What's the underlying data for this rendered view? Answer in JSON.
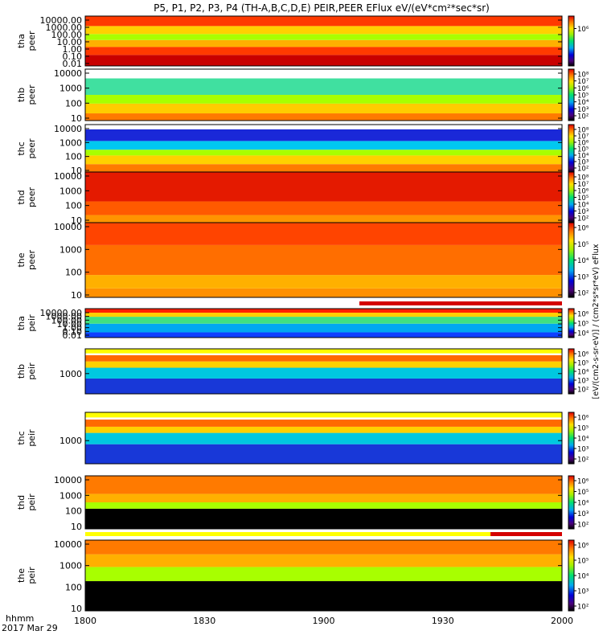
{
  "title": "P5, P1, P2, P3, P4 (TH-A,B,C,D,E) PEIR,PEER EFlux eV/(eV*cm²*sec*sr)",
  "x_axis": {
    "label": "hhmm",
    "date": "2017 Mar 29",
    "ticks": [
      "1800",
      "1830",
      "1900",
      "1930",
      "2000"
    ]
  },
  "colorbar_units_text": "[eV/(cm2-s-sr-eV)] / (cm2*s*sr*eV) eFlux",
  "colorbar_tick_text": [
    "10²",
    "10³",
    "10⁴",
    "10⁵",
    "10⁶",
    "10⁷",
    "10⁸"
  ],
  "chart_data": {
    "type": "heatmap",
    "title": "P5, P1, P2, P3, P4 (TH-A,B,C,D,E) PEIR,PEER EFlux eV/(eV*cm²*sec*sr)",
    "x_range": [
      "18:00",
      "20:00"
    ],
    "x_ticks": [
      "1800",
      "1830",
      "1900",
      "1930",
      "2000"
    ],
    "zscale": "log",
    "panels": [
      {
        "name": "tha peer",
        "label": [
          "tha",
          "peer"
        ],
        "yscale": "log",
        "yticks": [
          "0.01",
          "0.10",
          "1.00",
          "10.00",
          "100.00",
          "1000.00",
          "10000.00"
        ],
        "cbticks": [
          "10⁶"
        ]
      },
      {
        "name": "thb peer",
        "label": [
          "thb",
          "peer"
        ],
        "yscale": "log",
        "yticks": [
          "10",
          "100",
          "1000",
          "10000"
        ],
        "cbticks": [
          "10²",
          "10³",
          "10⁴",
          "10⁵",
          "10⁶",
          "10⁷",
          "10⁸"
        ]
      },
      {
        "name": "thc peer",
        "label": [
          "thc",
          "peer"
        ],
        "yscale": "log",
        "yticks": [
          "10",
          "100",
          "1000",
          "10000"
        ],
        "cbticks": [
          "10²",
          "10³",
          "10⁴",
          "10⁵",
          "10⁶",
          "10⁷",
          "10⁸"
        ]
      },
      {
        "name": "thd peer",
        "label": [
          "thd",
          "peer"
        ],
        "yscale": "log",
        "yticks": [
          "10",
          "100",
          "1000",
          "10000"
        ],
        "cbticks": [
          "10²",
          "10³",
          "10⁴",
          "10⁵",
          "10⁶",
          "10⁷",
          "10⁸"
        ]
      },
      {
        "name": "the peer",
        "label": [
          "the",
          "peer"
        ],
        "yscale": "log",
        "yticks": [
          "10",
          "100",
          "1000",
          "10000"
        ],
        "cbticks": [
          "10²",
          "10³",
          "10⁴",
          "10⁵",
          "10⁶"
        ]
      },
      {
        "name": "tha peir",
        "label": [
          "tha",
          "peir"
        ],
        "yscale": "log",
        "yticks": [
          "0.01",
          "0.10",
          "1.00",
          "10.00",
          "100.00",
          "1000.00",
          "10000.00"
        ],
        "cbticks": [
          "10⁴",
          "10⁵",
          "10⁶"
        ]
      },
      {
        "name": "thb peir",
        "label": [
          "thb",
          "peir"
        ],
        "yscale": "log",
        "yticks": [
          "1000"
        ],
        "cbticks": [
          "10²",
          "10³",
          "10⁴",
          "10⁵",
          "10⁶"
        ]
      },
      {
        "name": "thc peir",
        "label": [
          "thc",
          "peir"
        ],
        "yscale": "log",
        "yticks": [
          "1000"
        ],
        "cbticks": [
          "10²",
          "10³",
          "10⁴",
          "10⁵",
          "10⁶"
        ]
      },
      {
        "name": "thd peir",
        "label": [
          "thd",
          "peir"
        ],
        "yscale": "log",
        "yticks": [
          "10",
          "100",
          "1000",
          "10000"
        ],
        "cbticks": [
          "10²",
          "10³",
          "10⁴",
          "10⁵",
          "10⁶"
        ]
      },
      {
        "name": "the peir",
        "label": [
          "the",
          "peir"
        ],
        "yscale": "log",
        "yticks": [
          "10",
          "100",
          "1000",
          "10000"
        ],
        "cbticks": [
          "10²",
          "10³",
          "10⁴",
          "10⁵",
          "10⁶"
        ]
      }
    ],
    "flag_bars": [
      {
        "after_panel": "the peer",
        "segments": [
          {
            "color": "#ffffff",
            "from": "18:00",
            "to": "19:09"
          },
          {
            "color": "#d40000",
            "from": "19:09",
            "to": "20:00"
          }
        ]
      },
      {
        "after_panel": "thd peir",
        "segments": [
          {
            "color": "#ffff00",
            "from": "18:00",
            "to": "19:42"
          },
          {
            "color": "#d40000",
            "from": "19:42",
            "to": "20:00"
          }
        ]
      }
    ]
  }
}
